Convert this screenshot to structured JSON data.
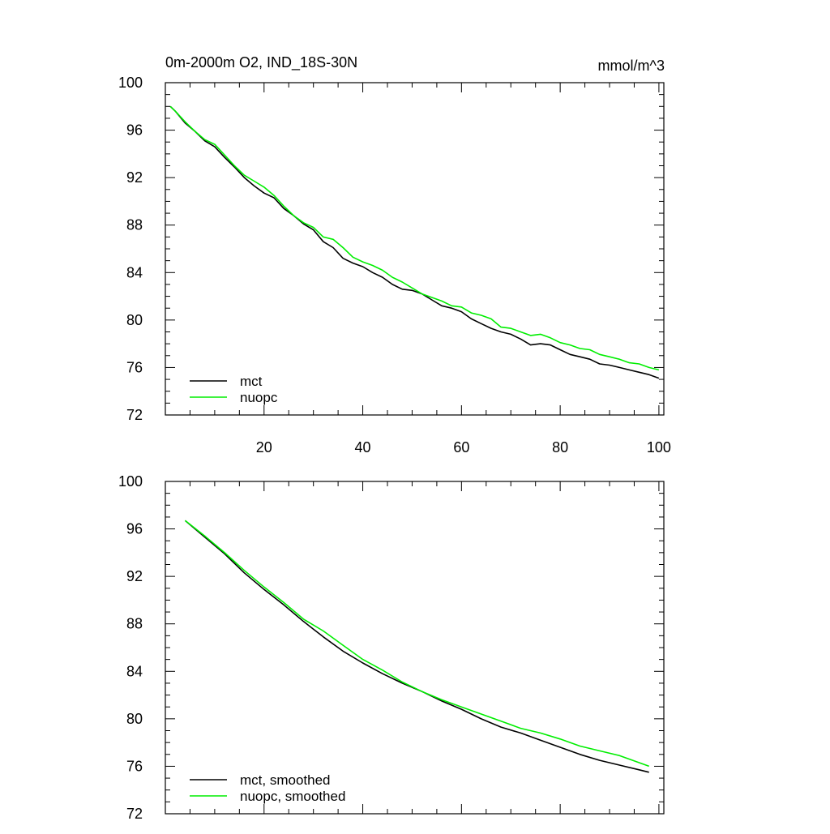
{
  "chart_data": [
    {
      "type": "line",
      "title": "0m-2000m O2, IND_18S-30N",
      "units": "mmol/m^3",
      "xlabel": "",
      "ylabel": "",
      "xlim": [
        0,
        101
      ],
      "ylim": [
        72,
        100
      ],
      "xticks": [
        20,
        40,
        60,
        80,
        100
      ],
      "xtick_labels": [
        "20",
        "40",
        "60",
        "80",
        "100"
      ],
      "yticks": [
        72,
        76,
        80,
        84,
        88,
        92,
        96,
        100
      ],
      "ytick_labels": [
        "72",
        "76",
        "80",
        "84",
        "88",
        "92",
        "96",
        "100"
      ],
      "show_xtick_labels": true,
      "legend_position": "bottom-left",
      "series": [
        {
          "name": "mct",
          "color": "#000000",
          "x": [
            1,
            2,
            4,
            6,
            8,
            10,
            12,
            14,
            16,
            18,
            20,
            22,
            24,
            26,
            28,
            30,
            32,
            34,
            36,
            38,
            40,
            42,
            44,
            46,
            48,
            50,
            52,
            54,
            56,
            58,
            60,
            62,
            64,
            66,
            68,
            70,
            72,
            74,
            76,
            78,
            80,
            82,
            84,
            86,
            88,
            90,
            92,
            94,
            96,
            98,
            100
          ],
          "y": [
            98.0,
            97.6,
            96.6,
            95.9,
            95.1,
            94.6,
            93.7,
            92.9,
            92.0,
            91.3,
            90.7,
            90.3,
            89.4,
            88.8,
            88.1,
            87.6,
            86.6,
            86.1,
            85.2,
            84.8,
            84.5,
            84.0,
            83.6,
            83.0,
            82.6,
            82.5,
            82.2,
            81.7,
            81.2,
            81.0,
            80.7,
            80.1,
            79.7,
            79.3,
            79.0,
            78.8,
            78.4,
            77.9,
            78.0,
            77.9,
            77.5,
            77.1,
            76.9,
            76.7,
            76.3,
            76.2,
            76.0,
            75.8,
            75.6,
            75.4,
            75.1
          ]
        },
        {
          "name": "nuopc",
          "color": "#00ee00",
          "x": [
            1,
            2,
            4,
            6,
            8,
            10,
            12,
            14,
            16,
            18,
            20,
            22,
            24,
            26,
            28,
            30,
            32,
            34,
            36,
            38,
            40,
            42,
            44,
            46,
            48,
            50,
            52,
            54,
            56,
            58,
            60,
            62,
            64,
            66,
            68,
            70,
            72,
            74,
            76,
            78,
            80,
            82,
            84,
            86,
            88,
            90,
            92,
            94,
            96,
            98,
            100
          ],
          "y": [
            98.0,
            97.6,
            96.7,
            95.9,
            95.2,
            94.8,
            93.9,
            93.0,
            92.2,
            91.7,
            91.2,
            90.5,
            89.6,
            88.8,
            88.2,
            87.8,
            87.0,
            86.8,
            86.1,
            85.3,
            84.9,
            84.6,
            84.2,
            83.6,
            83.2,
            82.7,
            82.2,
            81.9,
            81.6,
            81.2,
            81.1,
            80.6,
            80.4,
            80.1,
            79.4,
            79.3,
            79.0,
            78.7,
            78.8,
            78.5,
            78.1,
            77.9,
            77.6,
            77.5,
            77.1,
            76.9,
            76.7,
            76.4,
            76.3,
            76.0,
            75.8
          ]
        }
      ]
    },
    {
      "type": "line",
      "title": "",
      "xlabel": "",
      "ylabel": "",
      "xlim": [
        0,
        101
      ],
      "ylim": [
        72,
        100
      ],
      "xticks": [
        20,
        40,
        60,
        80,
        100
      ],
      "xtick_labels": [],
      "yticks": [
        72,
        76,
        80,
        84,
        88,
        92,
        96,
        100
      ],
      "ytick_labels": [
        "72",
        "76",
        "80",
        "84",
        "88",
        "92",
        "96",
        "100"
      ],
      "show_xtick_labels": false,
      "legend_position": "bottom-left",
      "series": [
        {
          "name": "mct, smoothed",
          "color": "#000000",
          "x": [
            4,
            8,
            12,
            16,
            20,
            24,
            28,
            32,
            36,
            40,
            44,
            48,
            52,
            56,
            60,
            64,
            68,
            72,
            76,
            80,
            84,
            88,
            92,
            96,
            98
          ],
          "y": [
            96.7,
            95.3,
            93.9,
            92.3,
            90.9,
            89.6,
            88.2,
            86.9,
            85.7,
            84.7,
            83.8,
            83.0,
            82.3,
            81.5,
            80.8,
            80.0,
            79.3,
            78.8,
            78.2,
            77.6,
            77.0,
            76.5,
            76.1,
            75.7,
            75.5
          ]
        },
        {
          "name": "nuopc, smoothed",
          "color": "#00ee00",
          "x": [
            4,
            8,
            12,
            16,
            20,
            24,
            28,
            32,
            36,
            40,
            44,
            48,
            52,
            56,
            60,
            64,
            68,
            72,
            76,
            80,
            84,
            88,
            92,
            96,
            98
          ],
          "y": [
            96.7,
            95.4,
            94.0,
            92.5,
            91.1,
            89.8,
            88.4,
            87.4,
            86.2,
            85.0,
            84.1,
            83.1,
            82.3,
            81.6,
            81.0,
            80.4,
            79.8,
            79.2,
            78.8,
            78.3,
            77.7,
            77.3,
            76.9,
            76.3,
            76.0
          ]
        }
      ]
    }
  ]
}
